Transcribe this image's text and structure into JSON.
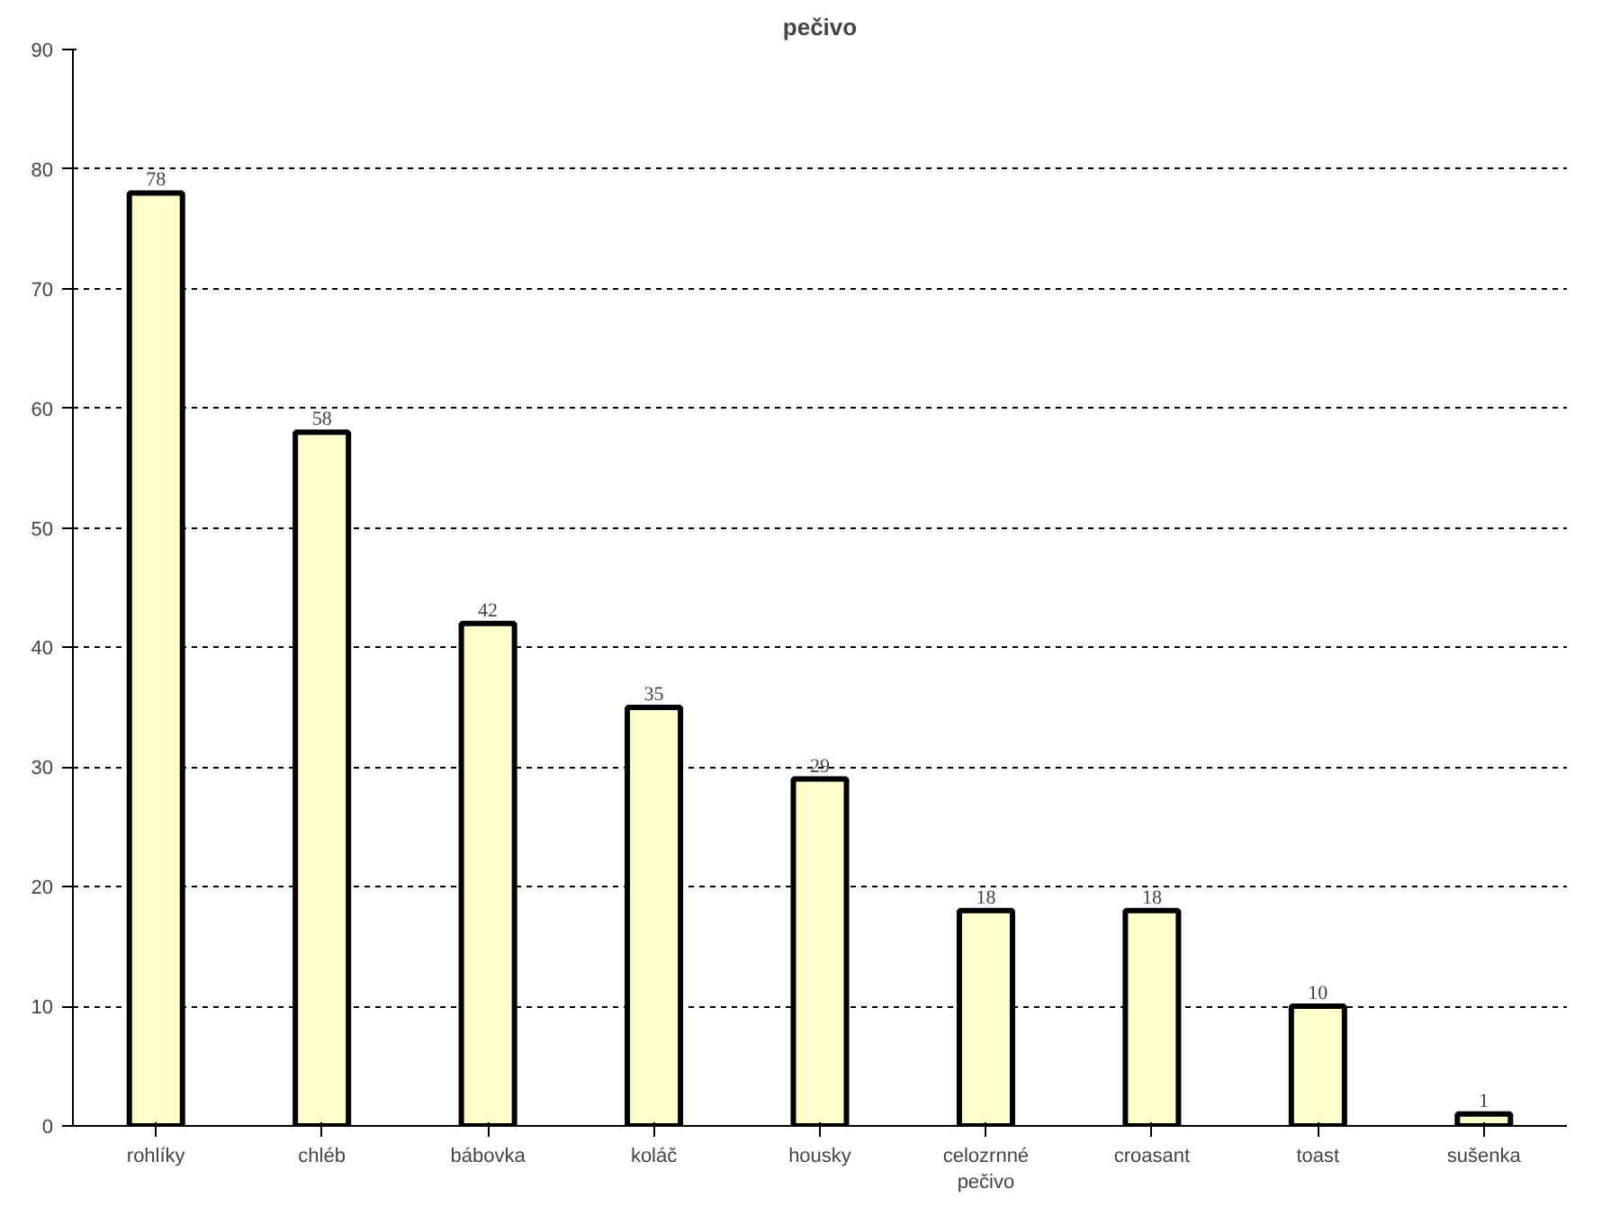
{
  "chart_data": {
    "type": "bar",
    "title": "pečivo",
    "categories": [
      "rohlíky",
      "chléb",
      "bábovka",
      "koláč",
      "housky",
      "celozrnné pečivo",
      "croasant",
      "toast",
      "sušenka"
    ],
    "values": [
      78,
      58,
      42,
      35,
      29,
      18,
      18,
      10,
      1
    ],
    "color": "#ffffcc",
    "ylim": [
      0,
      90
    ],
    "yticks": [
      0,
      10,
      20,
      30,
      40,
      50,
      60,
      70,
      80,
      90
    ],
    "grid": "y",
    "data_labels": true
  }
}
